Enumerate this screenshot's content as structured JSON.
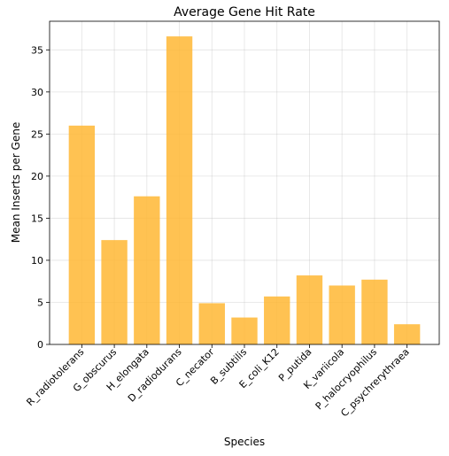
{
  "chart_data": {
    "type": "bar",
    "title": "Average Gene Hit Rate",
    "xlabel": "Species",
    "ylabel": "Mean Inserts per Gene",
    "categories": [
      "R_radiotolerans",
      "G_obscurus",
      "H_elongata",
      "D_radiodurans",
      "C_necator",
      "B_subtilis",
      "E_coli_K12",
      "P_putida",
      "K_variicola",
      "P_halocryophilus",
      "C_psychrerythraea"
    ],
    "values": [
      26.0,
      12.4,
      17.6,
      36.6,
      4.9,
      3.2,
      5.7,
      8.2,
      7.0,
      7.7,
      2.4
    ],
    "ylim": [
      0,
      38.4
    ],
    "yticks": [
      0,
      5,
      10,
      15,
      20,
      25,
      30,
      35
    ],
    "grid": true,
    "bar_color": "#ffb734",
    "bar_opacity": 0.85
  }
}
